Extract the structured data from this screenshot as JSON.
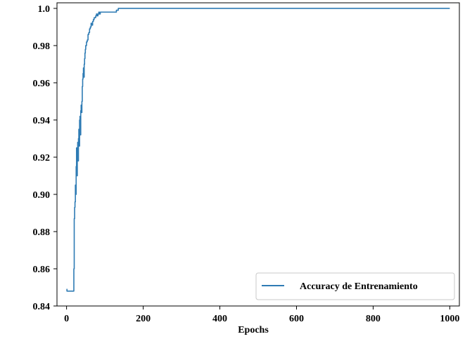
{
  "chart_data": {
    "type": "line",
    "xlabel": "Epochs",
    "ylabel": "",
    "title": "",
    "xlim": [
      -25,
      1025
    ],
    "ylim": [
      0.84,
      1.003
    ],
    "xticks": [
      0,
      200,
      400,
      600,
      800,
      1000
    ],
    "xtick_labels": [
      "0",
      "200",
      "400",
      "600",
      "800",
      "1000"
    ],
    "yticks": [
      0.84,
      0.86,
      0.88,
      0.9,
      0.92,
      0.94,
      0.96,
      0.98,
      1.0
    ],
    "ytick_labels": [
      "0.84",
      "0.86",
      "0.88",
      "0.90",
      "0.92",
      "0.94",
      "0.96",
      "0.98",
      "1.0"
    ],
    "grid": false,
    "legend_position": "bottom-right",
    "series": [
      {
        "name": "Accuracy de Entrenamiento",
        "color": "#2e7bb4",
        "x": [
          0,
          1,
          2,
          3,
          4,
          5,
          6,
          7,
          8,
          9,
          10,
          11,
          12,
          13,
          14,
          15,
          16,
          17,
          18,
          19,
          20,
          21,
          22,
          23,
          24,
          25,
          26,
          27,
          28,
          29,
          30,
          31,
          32,
          33,
          34,
          35,
          36,
          37,
          38,
          39,
          40,
          41,
          42,
          43,
          44,
          45,
          46,
          47,
          48,
          49,
          50,
          52,
          54,
          56,
          58,
          60,
          62,
          64,
          66,
          68,
          70,
          72,
          74,
          76,
          78,
          80,
          82,
          84,
          86,
          88,
          90,
          92,
          95,
          98,
          100,
          105,
          110,
          115,
          120,
          125,
          130,
          135,
          140,
          200,
          300,
          400,
          500,
          600,
          700,
          800,
          900,
          1000
        ],
        "y": [
          0.849,
          0.848,
          0.848,
          0.848,
          0.848,
          0.848,
          0.848,
          0.848,
          0.848,
          0.848,
          0.848,
          0.848,
          0.848,
          0.848,
          0.848,
          0.848,
          0.848,
          0.848,
          0.848,
          0.86,
          0.887,
          0.893,
          0.896,
          0.905,
          0.9,
          0.915,
          0.925,
          0.91,
          0.922,
          0.928,
          0.918,
          0.93,
          0.935,
          0.926,
          0.94,
          0.942,
          0.932,
          0.945,
          0.948,
          0.944,
          0.95,
          0.958,
          0.962,
          0.965,
          0.968,
          0.963,
          0.97,
          0.973,
          0.976,
          0.978,
          0.98,
          0.982,
          0.983,
          0.986,
          0.987,
          0.989,
          0.99,
          0.992,
          0.991,
          0.993,
          0.994,
          0.995,
          0.995,
          0.996,
          0.997,
          0.996,
          0.997,
          0.998,
          0.997,
          0.998,
          0.998,
          0.998,
          0.998,
          0.998,
          0.998,
          0.998,
          0.998,
          0.998,
          0.998,
          0.998,
          0.999,
          1.0,
          1.0,
          1.0,
          1.0,
          1.0,
          1.0,
          1.0,
          1.0,
          1.0,
          1.0,
          1.0
        ]
      }
    ]
  }
}
